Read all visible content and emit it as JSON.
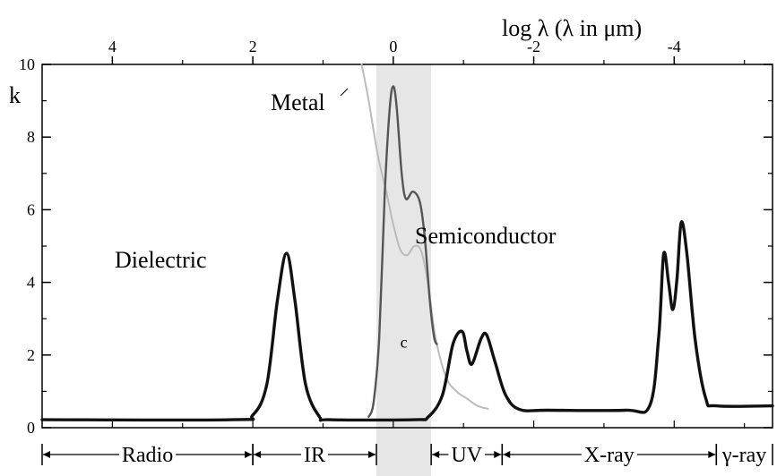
{
  "chart_data": {
    "type": "line",
    "top_axis": {
      "label": "log λ (λ in μm)",
      "ticks": [
        4,
        2,
        0,
        -2,
        -4
      ],
      "tick_labels": [
        "4",
        "2",
        "0",
        "-2",
        "-4"
      ],
      "range": [
        5,
        -5.4
      ],
      "direction": "decreasing"
    },
    "y_axis": {
      "label": "k",
      "ticks": [
        0,
        2,
        4,
        6,
        8,
        10
      ],
      "tick_labels": [
        "0",
        "2",
        "4",
        "6",
        "8",
        "10"
      ],
      "range": [
        0,
        10
      ]
    },
    "grid": false,
    "highlight": {
      "x_range": [
        0.24,
        -0.54
      ],
      "description": "visible"
    },
    "highlight_label": "c",
    "series": [
      {
        "name": "Dielectric",
        "color": "#111111",
        "points": [
          [
            5.0,
            0.22
          ],
          [
            2.3,
            0.22
          ],
          [
            2.0,
            0.35
          ],
          [
            1.8,
            1.2
          ],
          [
            1.65,
            3.5
          ],
          [
            1.52,
            4.8
          ],
          [
            1.4,
            3.5
          ],
          [
            1.25,
            1.2
          ],
          [
            1.05,
            0.3
          ],
          [
            0.9,
            0.22
          ],
          [
            -0.3,
            0.22
          ],
          [
            -0.5,
            0.3
          ],
          [
            -0.7,
            0.9
          ],
          [
            -0.85,
            2.3
          ],
          [
            -0.98,
            2.65
          ],
          [
            -1.05,
            2.1
          ],
          [
            -1.12,
            1.75
          ],
          [
            -1.25,
            2.45
          ],
          [
            -1.33,
            2.55
          ],
          [
            -1.45,
            1.8
          ],
          [
            -1.6,
            0.9
          ],
          [
            -1.8,
            0.5
          ],
          [
            -2.2,
            0.48
          ],
          [
            -3.3,
            0.48
          ],
          [
            -3.65,
            0.6
          ],
          [
            -3.78,
            2.5
          ],
          [
            -3.85,
            4.78
          ],
          [
            -3.92,
            4.0
          ],
          [
            -3.98,
            3.25
          ],
          [
            -4.04,
            4.1
          ],
          [
            -4.1,
            5.65
          ],
          [
            -4.18,
            4.8
          ],
          [
            -4.3,
            2.4
          ],
          [
            -4.45,
            0.8
          ],
          [
            -4.6,
            0.6
          ],
          [
            -5.4,
            0.6
          ]
        ]
      },
      {
        "name": "Semiconductor",
        "color": "#555555",
        "points": [
          [
            0.35,
            0.3
          ],
          [
            0.28,
            0.7
          ],
          [
            0.2,
            2.5
          ],
          [
            0.12,
            6.5
          ],
          [
            0.05,
            8.8
          ],
          [
            0.0,
            9.4
          ],
          [
            -0.05,
            8.8
          ],
          [
            -0.12,
            7.0
          ],
          [
            -0.18,
            6.3
          ],
          [
            -0.28,
            6.5
          ],
          [
            -0.38,
            6.2
          ],
          [
            -0.45,
            5.2
          ],
          [
            -0.52,
            3.5
          ],
          [
            -0.58,
            2.5
          ],
          [
            -0.62,
            2.3
          ]
        ]
      },
      {
        "name": "Metal",
        "color": "#bbbbbb",
        "points": [
          [
            0.45,
            10.0
          ],
          [
            0.35,
            9.0
          ],
          [
            0.22,
            7.5
          ],
          [
            0.1,
            6.5
          ],
          [
            0.0,
            5.6
          ],
          [
            -0.1,
            4.9
          ],
          [
            -0.2,
            4.75
          ],
          [
            -0.3,
            5.0
          ],
          [
            -0.4,
            4.85
          ],
          [
            -0.5,
            3.9
          ],
          [
            -0.6,
            2.5
          ],
          [
            -0.75,
            1.4
          ],
          [
            -0.9,
            1.0
          ],
          [
            -1.05,
            0.8
          ],
          [
            -1.2,
            0.6
          ],
          [
            -1.35,
            0.52
          ]
        ]
      }
    ],
    "labels": {
      "metal": "Metal",
      "semiconductor": "Semiconductor",
      "dielectric": "Dielectric"
    },
    "bands": [
      {
        "label": "Radio",
        "from": 5.0,
        "to": 2.0
      },
      {
        "label": "IR",
        "from": 2.0,
        "to": 0.24
      },
      {
        "label": "UV",
        "from": -0.54,
        "to": -1.55
      },
      {
        "label": "X-ray",
        "from": -1.55,
        "to": -4.6
      },
      {
        "label": "γ-ray",
        "from": -4.6,
        "to": -5.4
      }
    ]
  }
}
